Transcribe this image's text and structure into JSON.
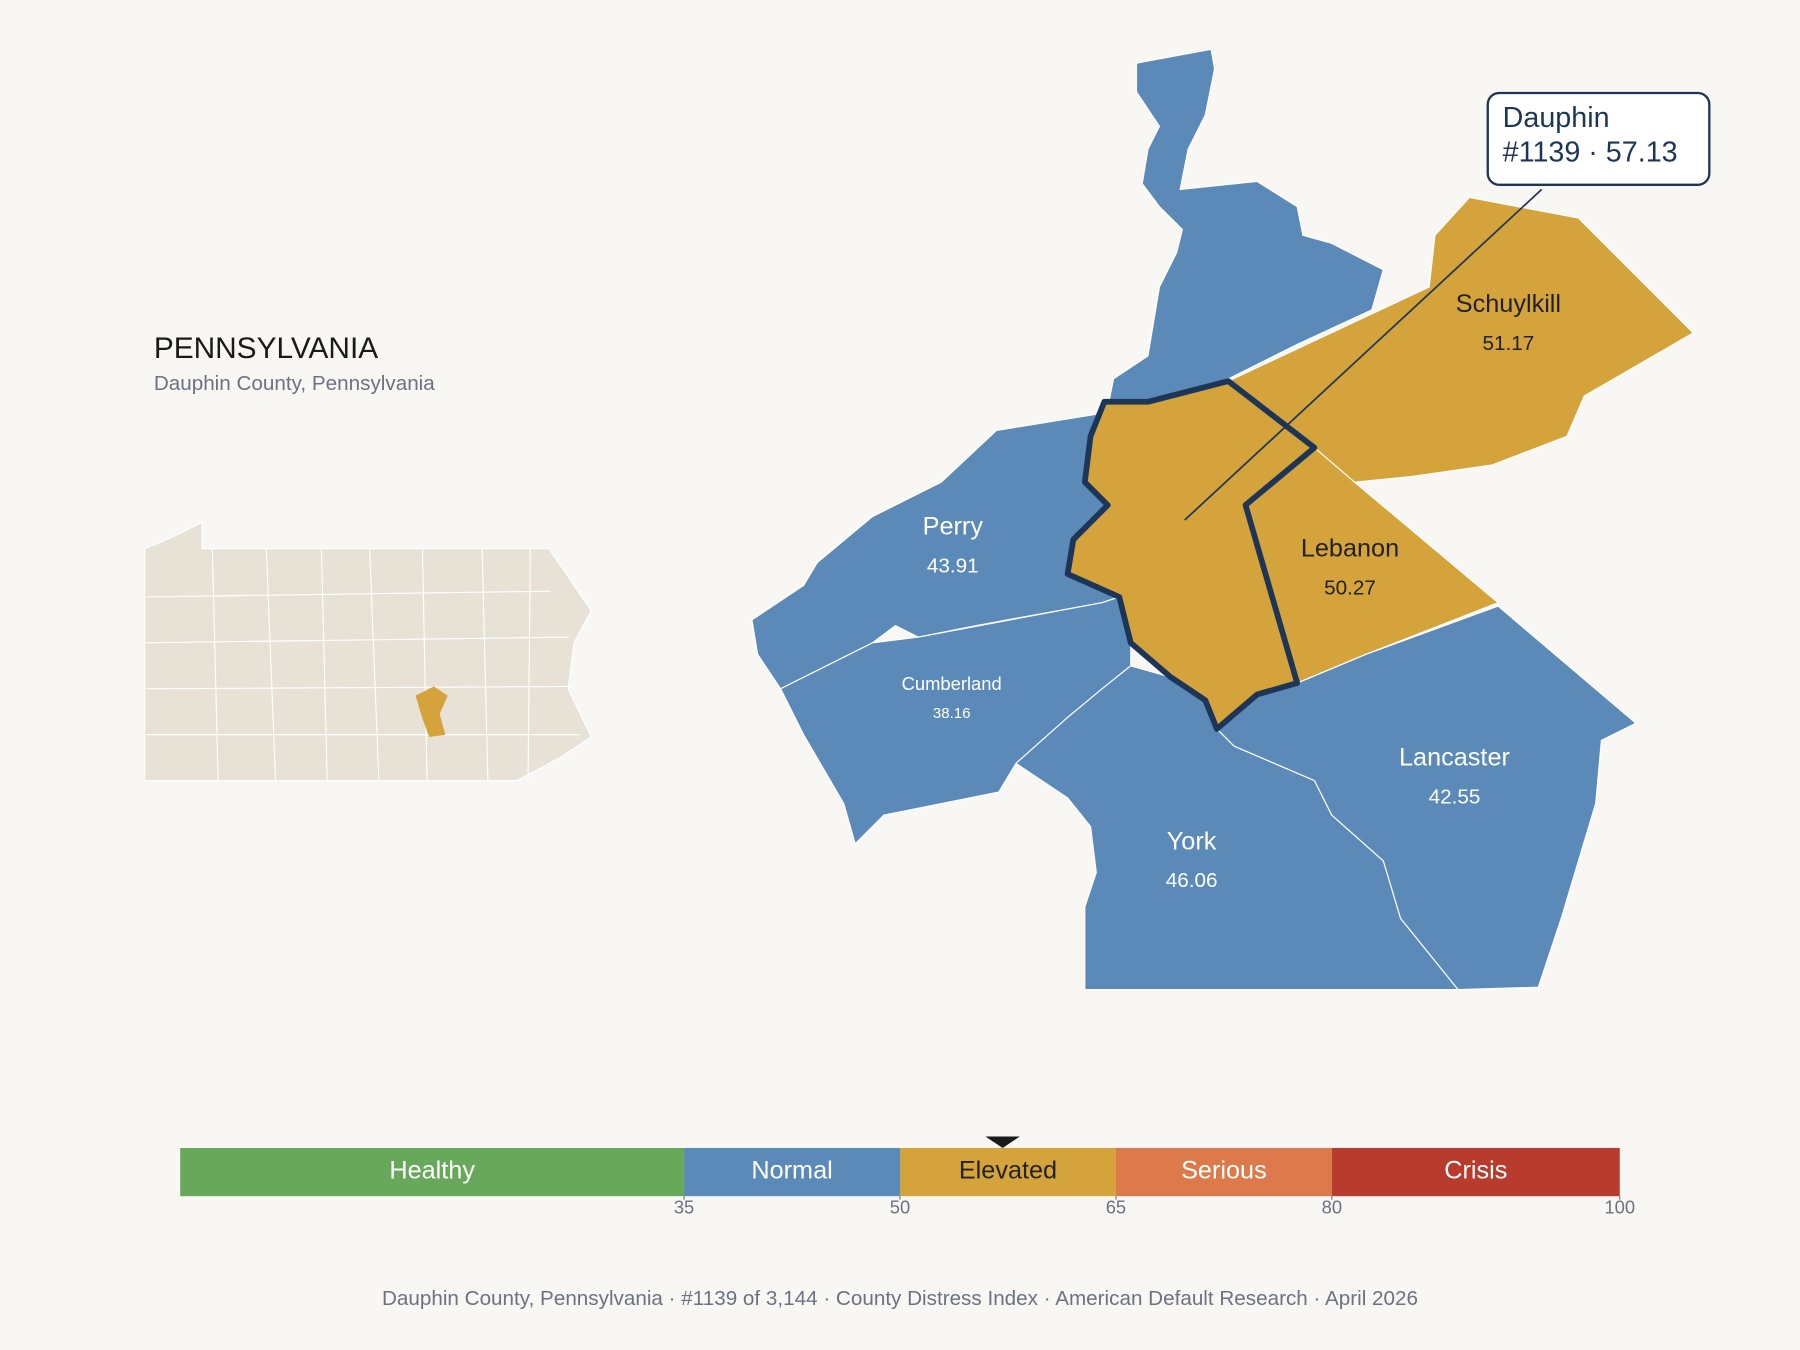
{
  "header": {
    "title": "PENNSYLVANIA",
    "subtitle": "Dauphin County, Pennsylvania"
  },
  "counties": [
    {
      "name": "Dauphin",
      "value": 57.13,
      "highlighted": true
    },
    {
      "name": "Perry",
      "value": 43.91
    },
    {
      "name": "Cumberland",
      "value": 38.16
    },
    {
      "name": "Schuylkill",
      "value": 51.17
    },
    {
      "name": "Lebanon",
      "value": 50.27
    },
    {
      "name": "Lancaster",
      "value": 42.55
    },
    {
      "name": "York",
      "value": 46.06
    }
  ],
  "callout": {
    "name": "Dauphin",
    "detail": "#1139 · 57.13"
  },
  "legend": {
    "range": [
      0,
      100
    ],
    "bands": [
      {
        "label": "Healthy",
        "from": 0,
        "to": 35,
        "color": "#67a85a",
        "text_color": "#ffffff"
      },
      {
        "label": "Normal",
        "from": 35,
        "to": 50,
        "color": "#5b8ab8",
        "text_color": "#ffffff"
      },
      {
        "label": "Elevated",
        "from": 50,
        "to": 65,
        "color": "#d4a33b",
        "text_color": "#222222"
      },
      {
        "label": "Serious",
        "from": 65,
        "to": 80,
        "color": "#dc7a4b",
        "text_color": "#ffffff"
      },
      {
        "label": "Crisis",
        "from": 80,
        "to": 100,
        "color": "#b83c2d",
        "text_color": "#ffffff"
      }
    ],
    "ticks": [
      35,
      50,
      65,
      80,
      100
    ]
  },
  "footer": "Dauphin County, Pennsylvania  ·  #1139 of 3,144  ·  County Distress Index  ·  American Default Research  ·  April 2026"
}
